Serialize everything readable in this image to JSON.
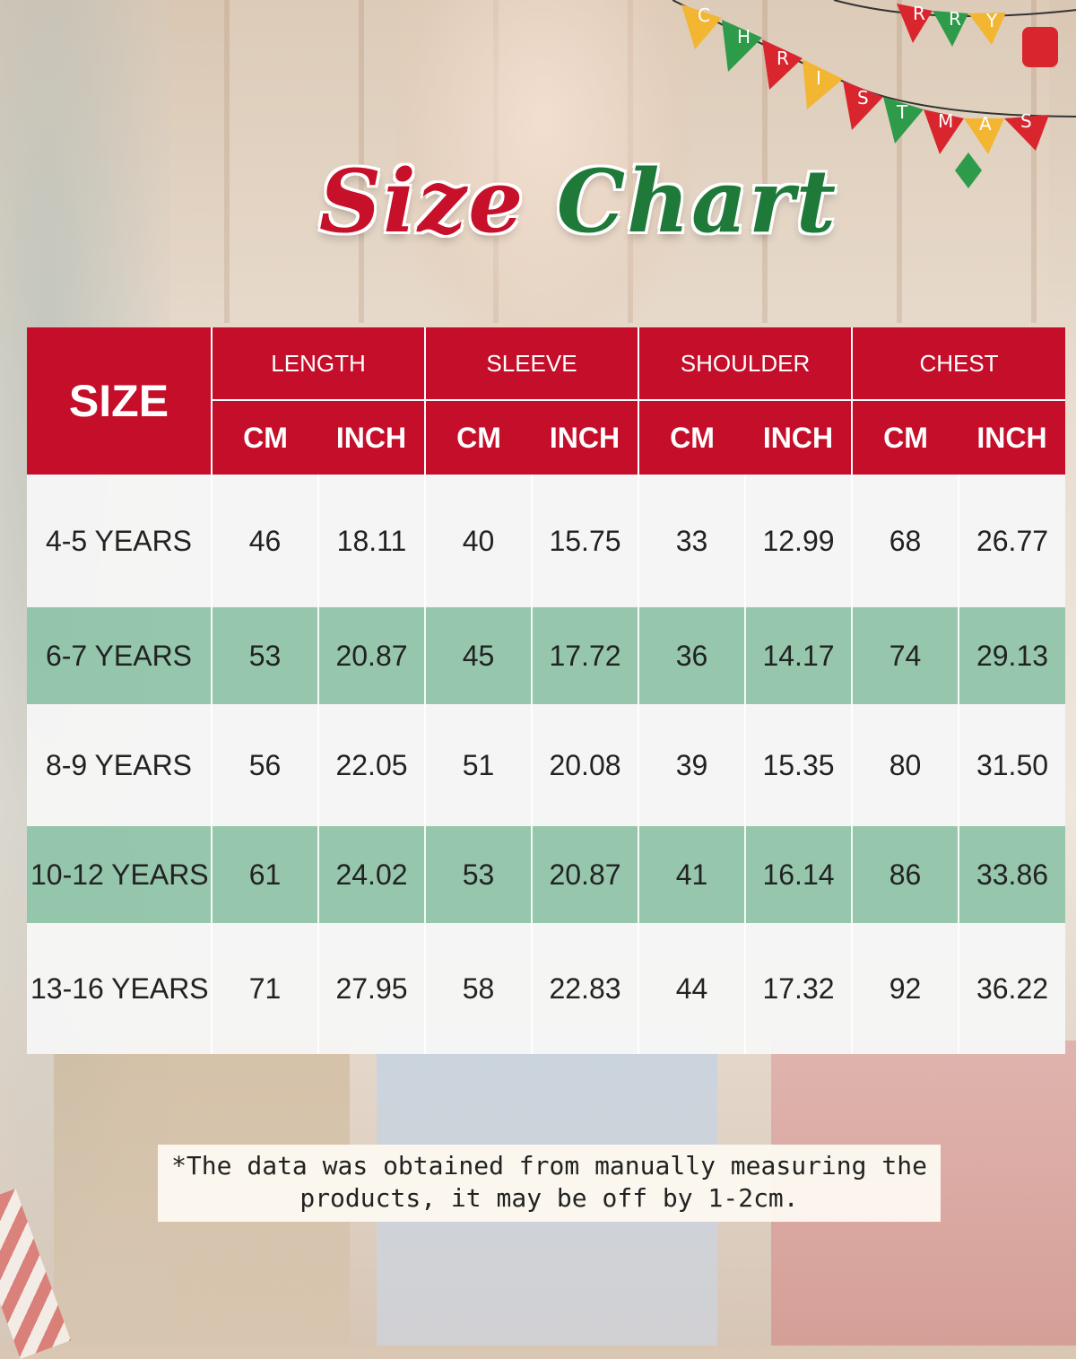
{
  "title": {
    "part1": "Size",
    "part2": "Chart"
  },
  "bunting": {
    "letters": [
      "C",
      "H",
      "R",
      "I",
      "S",
      "T",
      "M",
      "A",
      "S",
      "R",
      "R",
      "Y"
    ]
  },
  "table": {
    "size_header": "SIZE",
    "groups": [
      "LENGTH",
      "SLEEVE",
      "SHOULDER",
      "CHEST"
    ],
    "units": [
      "CM",
      "INCH"
    ],
    "rows": [
      {
        "size": "4-5 YEARS",
        "values": [
          "46",
          "18.11",
          "40",
          "15.75",
          "33",
          "12.99",
          "68",
          "26.77"
        ]
      },
      {
        "size": "6-7 YEARS",
        "values": [
          "53",
          "20.87",
          "45",
          "17.72",
          "36",
          "14.17",
          "74",
          "29.13"
        ]
      },
      {
        "size": "8-9 YEARS",
        "values": [
          "56",
          "22.05",
          "51",
          "20.08",
          "39",
          "15.35",
          "80",
          "31.50"
        ]
      },
      {
        "size": "10-12 YEARS",
        "values": [
          "61",
          "24.02",
          "53",
          "20.87",
          "41",
          "16.14",
          "86",
          "33.86"
        ]
      },
      {
        "size": "13-16 YEARS",
        "values": [
          "71",
          "27.95",
          "58",
          "22.83",
          "44",
          "17.32",
          "92",
          "36.22"
        ]
      }
    ]
  },
  "note": {
    "line1": "*The data was obtained from manually measuring the",
    "line2": "products, it may be off by 1-2cm."
  },
  "colors": {
    "header_red": "#c40e2a",
    "row_green": "#8ec4a8",
    "title_green": "#1f7a3a"
  }
}
